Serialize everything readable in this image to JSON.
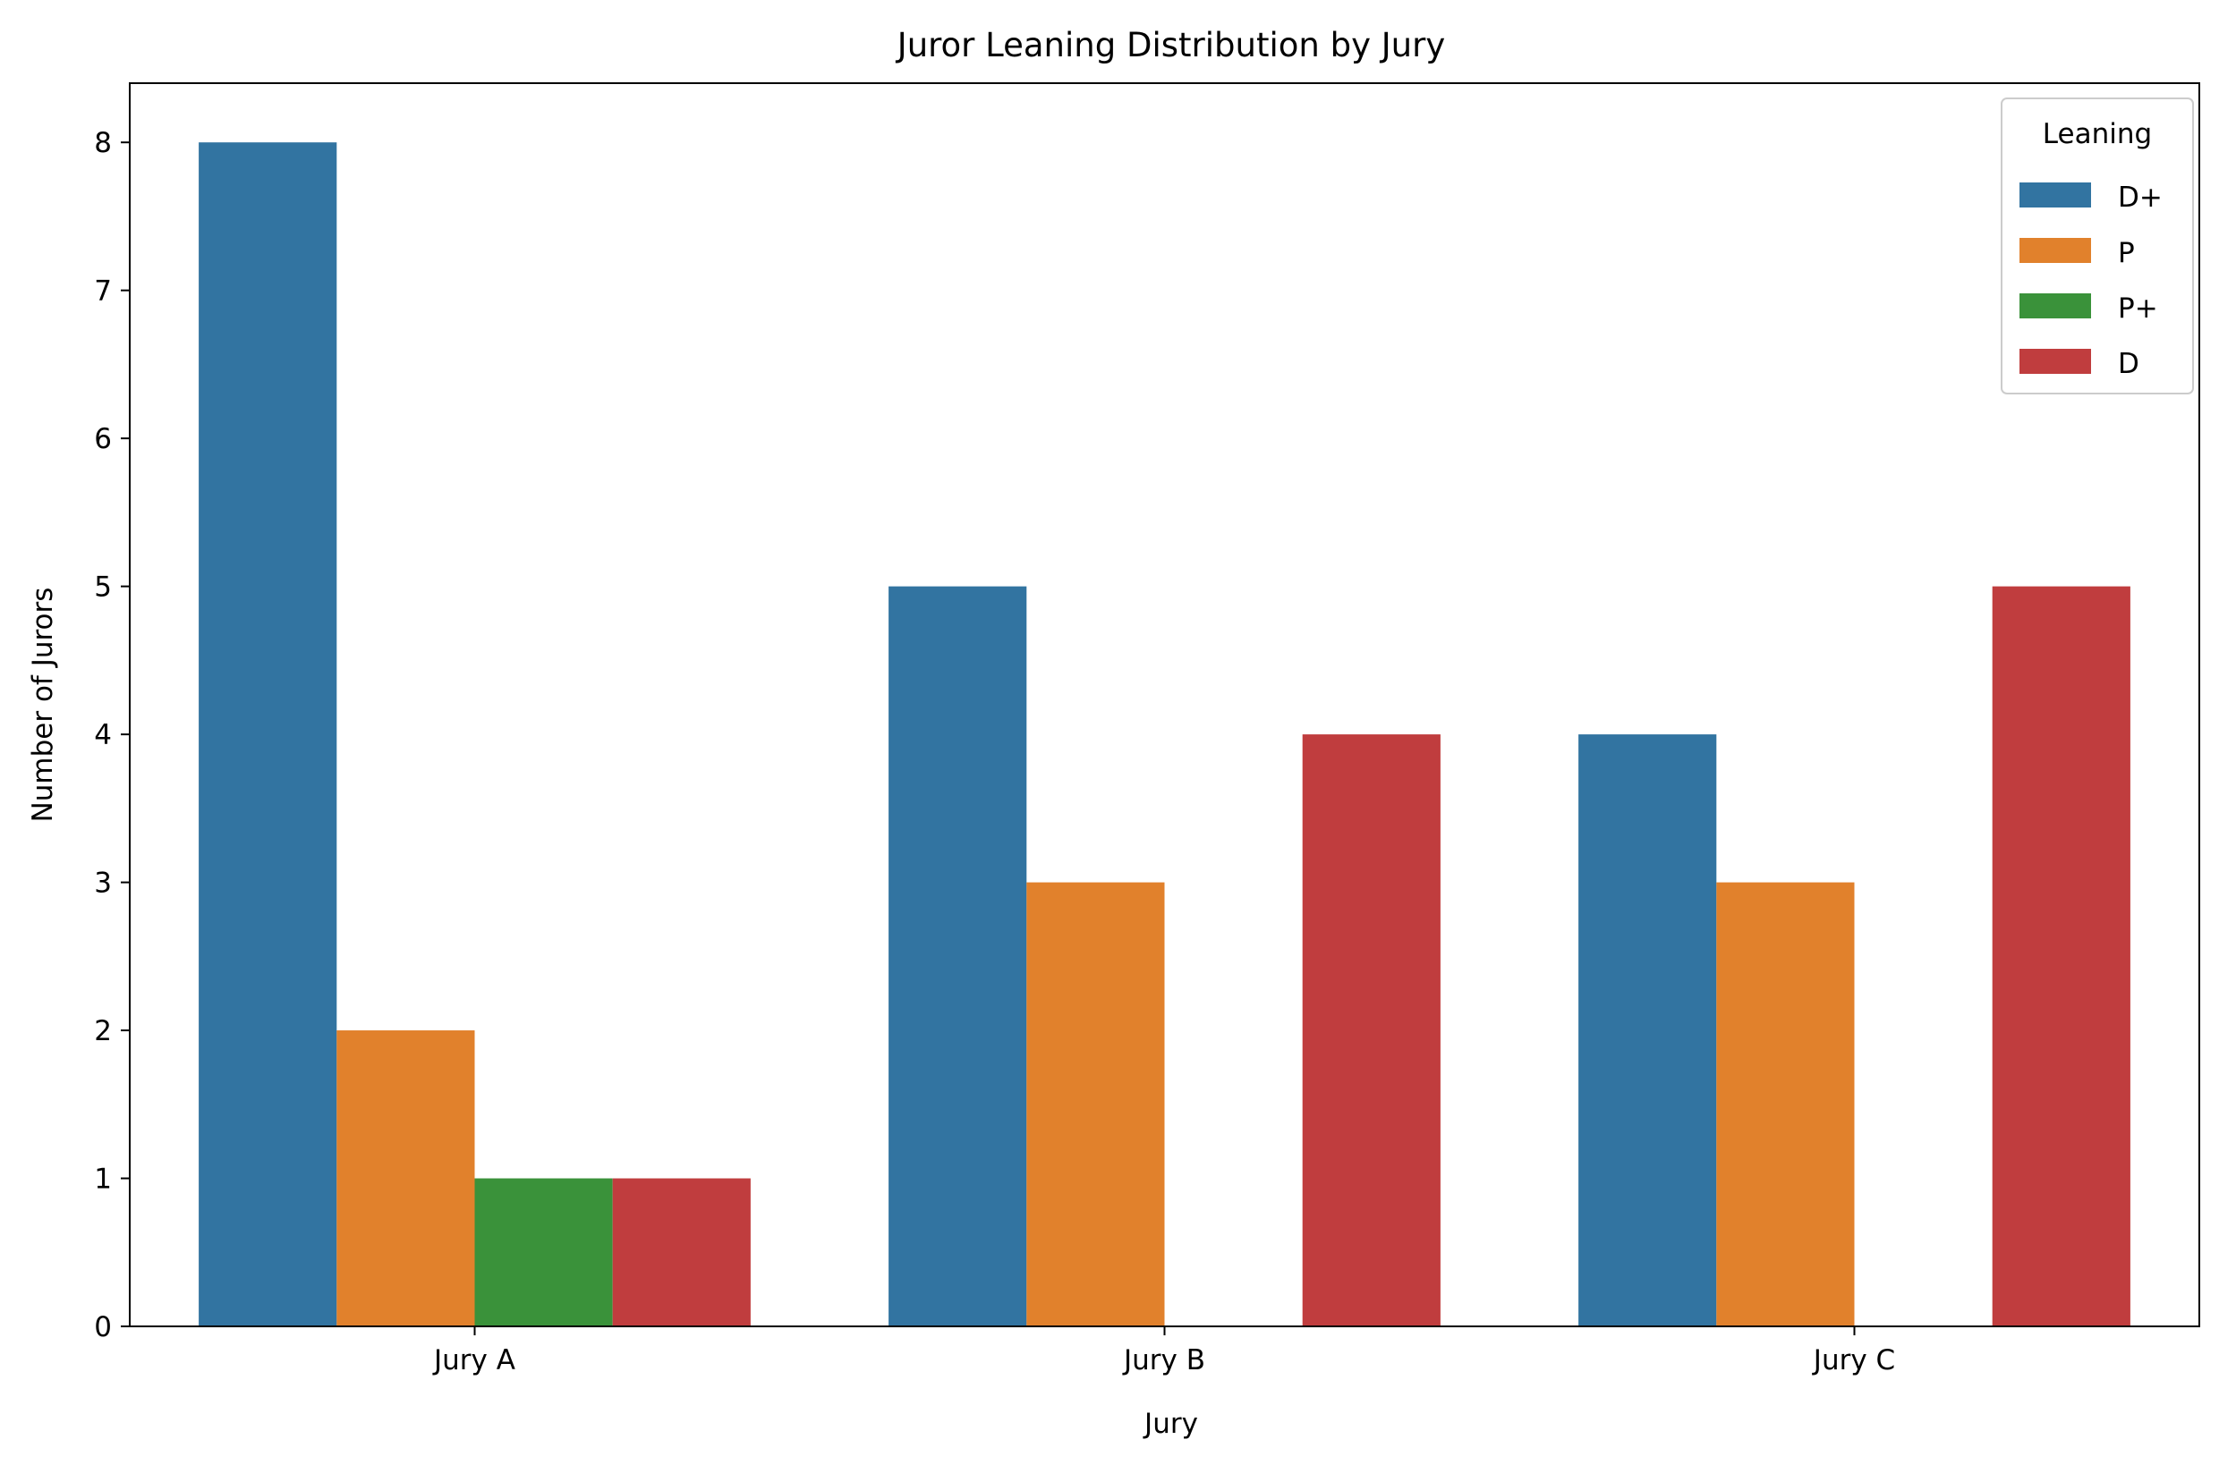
{
  "chart_data": {
    "type": "bar",
    "title": "Juror Leaning Distribution by Jury",
    "xlabel": "Jury",
    "ylabel": "Number of Jurors",
    "categories": [
      "Jury A",
      "Jury B",
      "Jury C"
    ],
    "series": [
      {
        "name": "D+",
        "color": "#3274a1",
        "values": [
          8,
          5,
          4
        ]
      },
      {
        "name": "P",
        "color": "#e1812c",
        "values": [
          2,
          3,
          3
        ]
      },
      {
        "name": "P+",
        "color": "#3a923a",
        "values": [
          1,
          0,
          0
        ]
      },
      {
        "name": "D",
        "color": "#c03d3e",
        "values": [
          1,
          4,
          5
        ]
      }
    ],
    "ylim": [
      0,
      8.4
    ],
    "yticks": [
      0,
      1,
      2,
      3,
      4,
      5,
      6,
      7,
      8
    ],
    "grid": false,
    "legend": {
      "title": "Leaning",
      "position": "top-right"
    }
  }
}
